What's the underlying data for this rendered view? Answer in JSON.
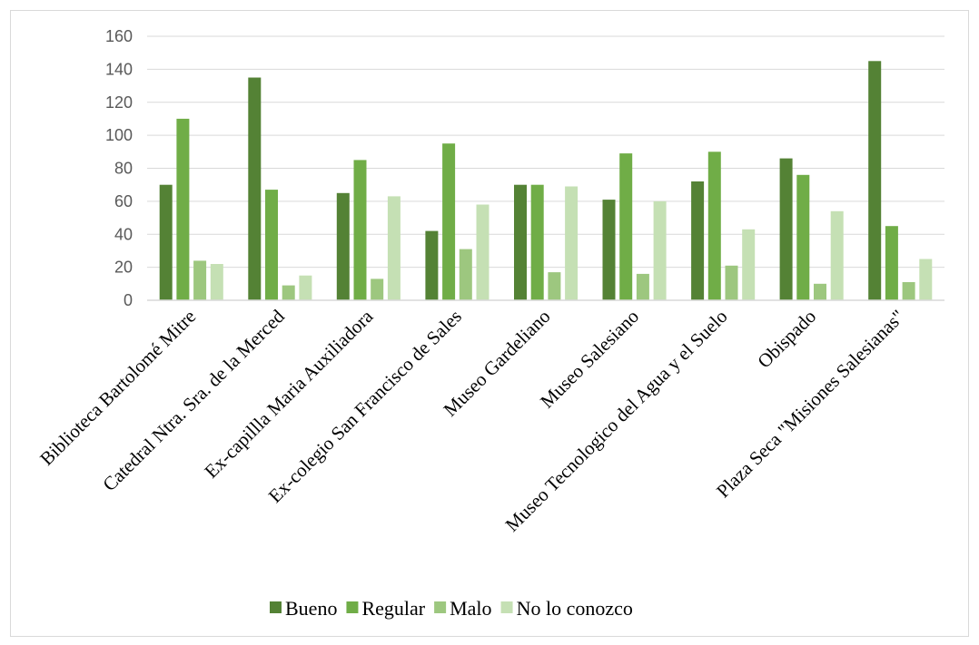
{
  "chart_data": {
    "type": "bar",
    "categories": [
      "Biblioteca Bartolomé Mitre",
      "Catedral Ntra. Sra. de la Merced",
      "Ex-capillla Maria Auxiliadora",
      "Ex-colegio San Francisco de Sales",
      "Museo Gardeliano",
      "Museo Salesiano",
      "Museo Tecnologico del Agua y el Suelo",
      "Obispado",
      "Plaza Seca \"Misiones Salesianas\""
    ],
    "series": [
      {
        "name": "Bueno",
        "color": "#548235",
        "values": [
          70,
          135,
          65,
          42,
          70,
          61,
          72,
          86,
          145
        ]
      },
      {
        "name": "Regular",
        "color": "#70ad47",
        "values": [
          110,
          67,
          85,
          95,
          70,
          89,
          90,
          76,
          45
        ]
      },
      {
        "name": "Malo",
        "color": "#9dc77f",
        "values": [
          24,
          9,
          13,
          31,
          17,
          16,
          21,
          10,
          11
        ]
      },
      {
        "name": "No lo conozco",
        "color": "#c5e0b4",
        "values": [
          22,
          15,
          63,
          58,
          69,
          60,
          43,
          54,
          25
        ]
      }
    ],
    "yticks": [
      0,
      20,
      40,
      60,
      80,
      100,
      120,
      140,
      160
    ],
    "ylim": [
      0,
      160
    ],
    "grid": true,
    "legend_position": "bottom"
  }
}
